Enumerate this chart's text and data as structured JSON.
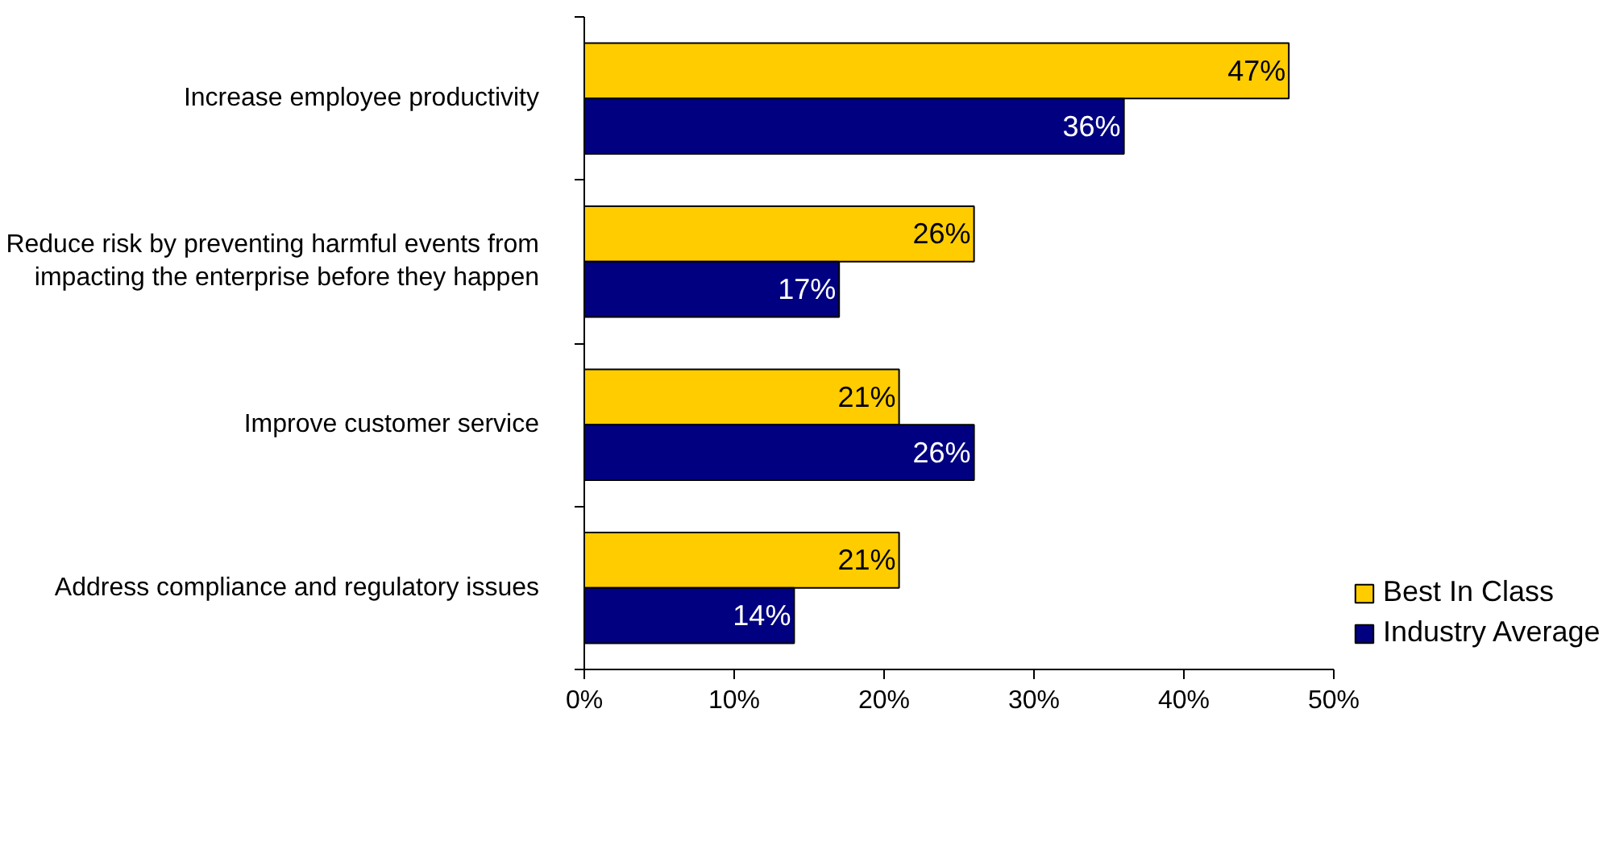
{
  "chart_data": {
    "type": "bar",
    "orientation": "horizontal",
    "categories": [
      "Increase employee productivity",
      "Reduce risk by preventing harmful events from impacting the enterprise before they happen",
      "Improve customer service",
      "Address compliance and regulatory issues"
    ],
    "series": [
      {
        "name": "Best In Class",
        "color": "#ffcc00",
        "values": [
          47,
          26,
          21,
          21
        ],
        "value_labels": [
          "47%",
          "26%",
          "21%",
          "21%"
        ]
      },
      {
        "name": "Industry Average",
        "color": "#000080",
        "values": [
          36,
          17,
          26,
          14
        ],
        "value_labels": [
          "36%",
          "17%",
          "26%",
          "14%"
        ]
      }
    ],
    "xlim": [
      0,
      50
    ],
    "xticks": [
      {
        "value": 0,
        "label": "0%"
      },
      {
        "value": 10,
        "label": "10%"
      },
      {
        "value": 20,
        "label": "20%"
      },
      {
        "value": 30,
        "label": "30%"
      },
      {
        "value": 40,
        "label": "40%"
      },
      {
        "value": 50,
        "label": "50%"
      }
    ],
    "grid": false,
    "legend": "bottom right"
  }
}
